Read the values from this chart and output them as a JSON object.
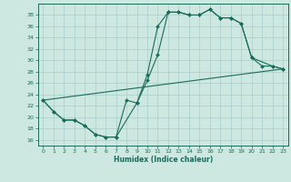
{
  "title": "",
  "xlabel": "Humidex (Indice chaleur)",
  "bg_color": "#cce8e0",
  "line_color": "#1a6b5a",
  "grid_color": "#aacccc",
  "xlim": [
    -0.5,
    23.5
  ],
  "ylim": [
    15,
    40
  ],
  "yticks": [
    16,
    18,
    20,
    22,
    24,
    26,
    28,
    30,
    32,
    34,
    36,
    38
  ],
  "xticks": [
    0,
    1,
    2,
    3,
    4,
    5,
    6,
    7,
    8,
    9,
    10,
    11,
    12,
    13,
    14,
    15,
    16,
    17,
    18,
    19,
    20,
    21,
    22,
    23
  ],
  "line1_x": [
    0,
    1,
    2,
    3,
    4,
    5,
    6,
    7,
    8,
    9,
    10,
    11,
    12,
    13,
    14,
    15,
    16,
    17,
    18,
    19,
    20,
    21,
    22,
    23
  ],
  "line1_y": [
    23,
    21,
    19.5,
    19.5,
    18.5,
    17,
    16.5,
    16.5,
    23,
    22.5,
    27.5,
    36,
    38.5,
    38.5,
    38,
    38,
    39,
    37.5,
    37.5,
    36.5,
    30.5,
    29,
    29,
    28.5
  ],
  "line2_x": [
    0,
    1,
    2,
    3,
    4,
    5,
    6,
    7,
    9,
    10,
    11,
    12,
    13,
    14,
    15,
    16,
    17,
    18,
    19,
    20,
    22,
    23
  ],
  "line2_y": [
    23,
    21,
    19.5,
    19.5,
    18.5,
    17,
    16.5,
    16.5,
    22.5,
    26.5,
    31,
    38.5,
    38.5,
    38,
    38,
    39,
    37.5,
    37.5,
    36.5,
    30.5,
    29,
    28.5
  ],
  "line3_x": [
    0,
    23
  ],
  "line3_y": [
    23,
    28.5
  ]
}
